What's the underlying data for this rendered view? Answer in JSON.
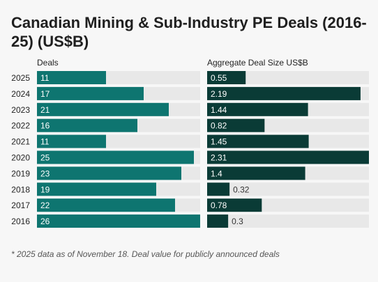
{
  "title": "Canadian Mining & Sub-Industry PE Deals (2016-25) (US$B)",
  "footnote": "* 2025 data as of November 18. Deal value for publicly announced deals",
  "colors": {
    "deals_bar": "#0e7570",
    "value_bar": "#0a3b36",
    "track": "#e8e8e8",
    "label_inside": "#ffffff",
    "label_outside": "#333333"
  },
  "chart_data": [
    {
      "type": "bar",
      "orientation": "horizontal",
      "title": "Deals",
      "categories": [
        "2025",
        "2024",
        "2023",
        "2022",
        "2021",
        "2020",
        "2019",
        "2018",
        "2017",
        "2016"
      ],
      "values": [
        11,
        17,
        21,
        16,
        11,
        25,
        23,
        19,
        22,
        26
      ],
      "xlim": [
        0,
        26
      ],
      "grid": false,
      "data_labels": true
    },
    {
      "type": "bar",
      "orientation": "horizontal",
      "title": "Aggregate Deal Size US$B",
      "categories": [
        "2025",
        "2024",
        "2023",
        "2022",
        "2021",
        "2020",
        "2019",
        "2018",
        "2017",
        "2016"
      ],
      "values": [
        0.55,
        2.19,
        1.44,
        0.82,
        1.45,
        2.31,
        1.4,
        0.32,
        0.78,
        0.3
      ],
      "xlim": [
        0,
        2.31
      ],
      "grid": false,
      "data_labels": true
    }
  ]
}
